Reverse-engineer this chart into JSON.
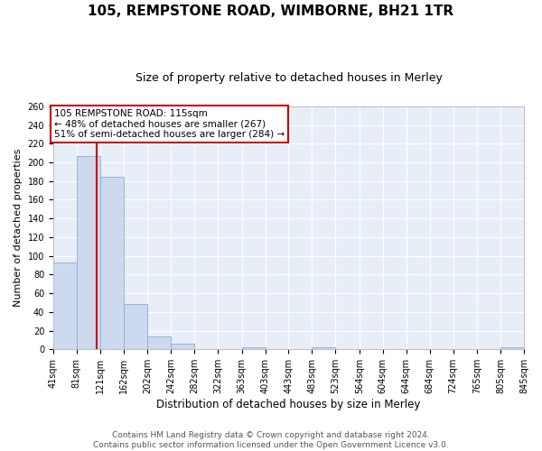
{
  "title1": "105, REMPSTONE ROAD, WIMBORNE, BH21 1TR",
  "title2": "Size of property relative to detached houses in Merley",
  "xlabel": "Distribution of detached houses by size in Merley",
  "ylabel": "Number of detached properties",
  "bar_edges": [
    41,
    81,
    121,
    162,
    202,
    242,
    282,
    322,
    363,
    403,
    443,
    483,
    523,
    564,
    604,
    644,
    684,
    724,
    765,
    805,
    845
  ],
  "bar_heights": [
    93,
    207,
    185,
    49,
    14,
    6,
    0,
    0,
    2,
    0,
    0,
    2,
    0,
    0,
    0,
    0,
    0,
    0,
    0,
    2
  ],
  "bar_color": "#ccd9ee",
  "bar_edge_color": "#8aadd4",
  "vline_x": 115,
  "vline_color": "#cc0000",
  "annotation_text": "105 REMPSTONE ROAD: 115sqm\n← 48% of detached houses are smaller (267)\n51% of semi-detached houses are larger (284) →",
  "annotation_box_color": "#ffffff",
  "annotation_box_edge": "#cc0000",
  "ylim": [
    0,
    260
  ],
  "yticks": [
    0,
    20,
    40,
    60,
    80,
    100,
    120,
    140,
    160,
    180,
    200,
    220,
    240,
    260
  ],
  "footer1": "Contains HM Land Registry data © Crown copyright and database right 2024.",
  "footer2": "Contains public sector information licensed under the Open Government Licence v3.0.",
  "bg_color": "#e8eef8",
  "grid_color": "#ffffff",
  "fig_bg_color": "#ffffff",
  "title1_fontsize": 11,
  "title2_fontsize": 9,
  "tick_label_fontsize": 7,
  "ylabel_fontsize": 8,
  "xlabel_fontsize": 8.5,
  "footer_fontsize": 6.5,
  "annot_fontsize": 7.5
}
